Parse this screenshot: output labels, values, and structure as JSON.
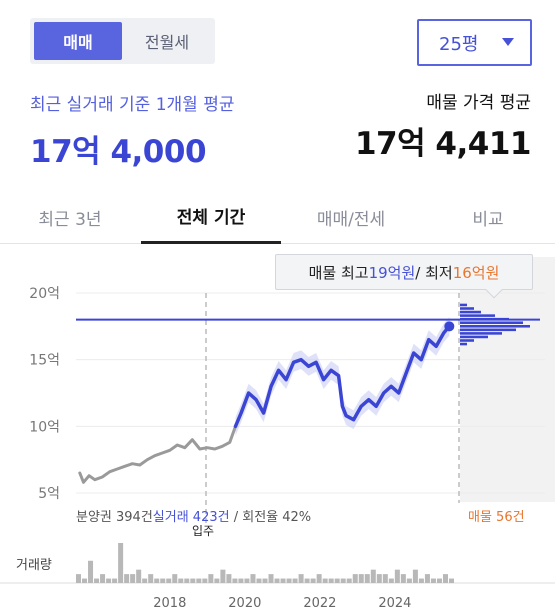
{
  "toggle": {
    "active_label": "매매",
    "inactive_label": "전월세"
  },
  "size_select": {
    "value": "25평"
  },
  "summary": {
    "recent_label": "최근 실거래 기준 1개월 평균",
    "recent_value": "17억 4,000",
    "listing_label": "매물 가격 평균",
    "listing_value": "17억 4,411"
  },
  "tabs": [
    "최근 3년",
    "전체 기간",
    "매매/전세",
    "비교"
  ],
  "active_tab": "전체 기간",
  "tooltip": {
    "prefix": "매물 최고 ",
    "max": "19억원",
    "separator": " / 최저 ",
    "min": "16억원"
  },
  "stats": {
    "presale": "분양권 394건",
    "trades": "실거래 423건",
    "turnover": " / 회전율 42%",
    "listings": "매물 56건",
    "move_in": "입주",
    "volume_label": "거래량"
  },
  "colors": {
    "accent": "#4651d6",
    "grey_line": "#9a9a9a",
    "orange": "#e8762d"
  },
  "chart_data": {
    "type": "line",
    "y_ticks": [
      "20억",
      "15억",
      "10억",
      "5억"
    ],
    "x_ticks": [
      "2018",
      "2020",
      "2022",
      "2024"
    ],
    "ylim": [
      5,
      20
    ],
    "xlim": [
      2015.5,
      2028
    ],
    "reference_line": 18,
    "series": [
      {
        "segment": "presale",
        "x": [
          2015.6,
          2015.7,
          2015.85,
          2016.0,
          2016.2,
          2016.4,
          2016.6,
          2016.8,
          2017.0,
          2017.2,
          2017.4,
          2017.6,
          2017.8,
          2018.0,
          2018.2,
          2018.4,
          2018.6,
          2018.8,
          2019.0,
          2019.2,
          2019.4,
          2019.6,
          2019.75
        ],
        "y": [
          6.5,
          5.8,
          6.3,
          6.0,
          6.2,
          6.6,
          6.8,
          7.0,
          7.2,
          7.1,
          7.5,
          7.8,
          8.0,
          8.2,
          8.6,
          8.4,
          9.0,
          8.3,
          8.4,
          8.3,
          8.5,
          8.8,
          10.0
        ]
      },
      {
        "segment": "trade",
        "x": [
          2019.75,
          2019.9,
          2020.1,
          2020.3,
          2020.5,
          2020.7,
          2020.9,
          2021.1,
          2021.3,
          2021.5,
          2021.7,
          2021.9,
          2022.1,
          2022.3,
          2022.5,
          2022.6,
          2022.7,
          2022.9,
          2023.1,
          2023.3,
          2023.5,
          2023.7,
          2023.9,
          2024.1,
          2024.3,
          2024.5,
          2024.7,
          2024.9,
          2025.1,
          2025.3,
          2025.45
        ],
        "y": [
          10.0,
          11.0,
          12.5,
          12.0,
          11.0,
          13.0,
          14.2,
          13.5,
          14.8,
          15.0,
          14.5,
          14.8,
          13.5,
          14.2,
          13.8,
          11.5,
          10.8,
          10.5,
          11.5,
          12.0,
          11.5,
          12.5,
          13.0,
          12.5,
          14.0,
          15.5,
          15.0,
          16.5,
          16.0,
          17.0,
          17.5
        ]
      }
    ],
    "volume": [
      2,
      1,
      5,
      1,
      2,
      1,
      1,
      9,
      2,
      2,
      3,
      1,
      2,
      1,
      1,
      1,
      2,
      1,
      1,
      1,
      1,
      1,
      2,
      1,
      3,
      2,
      1,
      1,
      1,
      2,
      1,
      1,
      2,
      1,
      1,
      1,
      1,
      2,
      1,
      1,
      2,
      1,
      1,
      1,
      1,
      1,
      2,
      2,
      2,
      3,
      2,
      2,
      1,
      3,
      2,
      1,
      3,
      1,
      2,
      1,
      1,
      2,
      1
    ],
    "listing_distribution": [
      1,
      2,
      3,
      5,
      7,
      9,
      10,
      8,
      6,
      4,
      2,
      1
    ]
  }
}
